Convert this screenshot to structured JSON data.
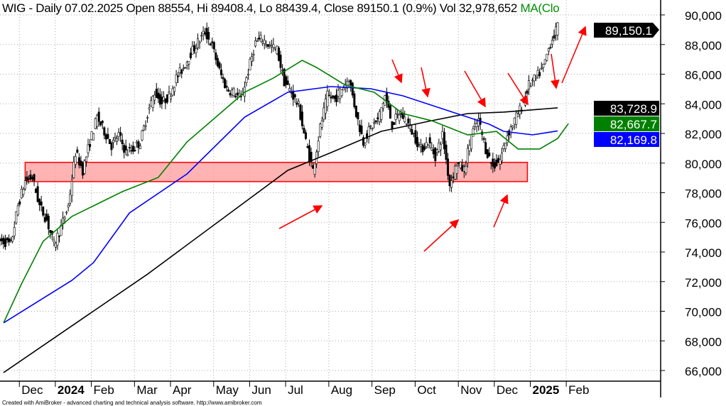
{
  "title": {
    "text": "WIG - Daily 07.02.2025 Open 88554, Hi 89408.4, Lo 88439.4, Close 89150.1 (0.9%) Vol 32,978,652",
    "ma_label": "MA(Clo"
  },
  "footer": "Created with AmiBroker - advanced charting and technical analysis software. http://www.amibroker.com",
  "chart_data": {
    "type": "line",
    "subtype": "candlestick-with-moving-averages",
    "symbol": "WIG",
    "ylim": [
      65000,
      90500
    ],
    "y_ticks": [
      90000,
      88000,
      86000,
      84000,
      82000,
      80000,
      78000,
      76000,
      74000,
      72000,
      70000,
      68000,
      66000
    ],
    "y_tick_labels": [
      "90,000",
      "88,000",
      "86,000",
      "84,000",
      "82,000",
      "80,000",
      "78,000",
      "76,000",
      "74,000",
      "72,000",
      "70,000",
      "68,000",
      "66,000"
    ],
    "x_labels": [
      "Dec",
      "2024",
      "Feb",
      "Mar",
      "Apr",
      "May",
      "Jun",
      "Jul",
      "Aug",
      "Sep",
      "Oct",
      "Nov",
      "Dec",
      "2025",
      "Feb"
    ],
    "x_bold": [
      false,
      true,
      false,
      false,
      false,
      false,
      false,
      false,
      false,
      false,
      false,
      false,
      false,
      true,
      false
    ],
    "x_label_bar_index": [
      2,
      7,
      12,
      18,
      23,
      29,
      34,
      39,
      45,
      51,
      57,
      63,
      68,
      73,
      78
    ],
    "grid": true,
    "price_closes_sampled": [
      74720,
      74480,
      77115,
      78790,
      79030,
      77115,
      76157,
      74480,
      75678,
      77115,
      80707,
      79510,
      81426,
      83102,
      82144,
      81186,
      81905,
      80707,
      80947,
      81426,
      83342,
      84779,
      84060,
      84539,
      85737,
      86455,
      87413,
      88132,
      88850,
      87892,
      86216,
      85018,
      84779,
      84300,
      86216,
      88132,
      88371,
      87892,
      87653,
      85497,
      84779,
      83821,
      81426,
      79510,
      82384,
      84539,
      84300,
      85018,
      85737,
      83342,
      81426,
      82384,
      82863,
      84539,
      82623,
      83342,
      82863,
      81905,
      80947,
      81426,
      80468,
      81905,
      78552,
      79989,
      79510,
      81905,
      82863,
      80947,
      79749,
      80228,
      81905,
      82863,
      83821,
      85258,
      85737,
      86455,
      88132,
      89150.1
    ],
    "series": [
      {
        "name": "MA long (black)",
        "color": "#000000",
        "last_value": "83,728.9",
        "points": [
          [
            0,
            65860
          ],
          [
            20,
            72500
          ],
          [
            39.5,
            79510
          ],
          [
            45.5,
            80707
          ],
          [
            52.5,
            82144
          ],
          [
            59.5,
            82863
          ],
          [
            64.5,
            83342
          ],
          [
            69.5,
            83438
          ],
          [
            77,
            83729
          ]
        ]
      },
      {
        "name": "MA medium (blue)",
        "color": "#0000ff",
        "last_value": "82,169.8",
        "points": [
          [
            0,
            69211
          ],
          [
            9.5,
            72085
          ],
          [
            12.5,
            73283
          ],
          [
            17.5,
            76636
          ],
          [
            25.5,
            79270
          ],
          [
            33.5,
            83102
          ],
          [
            39.5,
            84779
          ],
          [
            45.5,
            85162
          ],
          [
            51,
            85018
          ],
          [
            55.5,
            84539
          ],
          [
            61.5,
            83581
          ],
          [
            67.5,
            82623
          ],
          [
            69.5,
            82144
          ],
          [
            73.5,
            81905
          ],
          [
            77,
            82170
          ]
        ]
      },
      {
        "name": "MA short (green)",
        "color": "#008000",
        "last_value": "82,667.7",
        "points": [
          [
            0,
            69211
          ],
          [
            2.5,
            71850
          ],
          [
            5.5,
            74720
          ],
          [
            9.5,
            76400
          ],
          [
            12.5,
            77115
          ],
          [
            16.5,
            78070
          ],
          [
            21.5,
            79030
          ],
          [
            25.5,
            81430
          ],
          [
            29.5,
            83100
          ],
          [
            33.5,
            84780
          ],
          [
            37.5,
            85740
          ],
          [
            41.5,
            86930
          ],
          [
            43.5,
            86450
          ],
          [
            47.5,
            85260
          ],
          [
            51.5,
            84780
          ],
          [
            55.5,
            83340
          ],
          [
            59.5,
            82860
          ],
          [
            64.5,
            81900
          ],
          [
            68.5,
            82140
          ],
          [
            71.5,
            80950
          ],
          [
            74.5,
            80950
          ],
          [
            77,
            81660
          ],
          [
            78.5,
            82668
          ]
        ]
      }
    ],
    "last_price_label": "89,150.1",
    "highlight_zone": {
      "from_index": 3,
      "to_index": 72.8,
      "low": 78750,
      "high": 80050,
      "color": "#ff9999"
    },
    "annotation_color": "#ff0000"
  }
}
